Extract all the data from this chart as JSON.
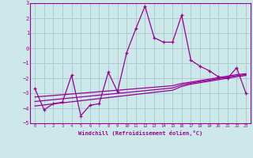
{
  "xlabel": "Windchill (Refroidissement éolien,°C)",
  "ylabel": "",
  "xlim": [
    -0.5,
    23.5
  ],
  "ylim": [
    -5,
    3
  ],
  "xticks": [
    0,
    1,
    2,
    3,
    4,
    5,
    6,
    7,
    8,
    9,
    10,
    11,
    12,
    13,
    14,
    15,
    16,
    17,
    18,
    19,
    20,
    21,
    22,
    23
  ],
  "yticks": [
    -5,
    -4,
    -3,
    -2,
    -1,
    0,
    1,
    2,
    3
  ],
  "bg_color": "#cce8e8",
  "line_color": "#990099",
  "grid_color": "#aacccc",
  "main_line": [
    -2.7,
    -4.1,
    -3.7,
    -3.6,
    -1.8,
    -4.5,
    -3.8,
    -3.7,
    -1.6,
    -2.9,
    -0.3,
    1.3,
    2.8,
    0.7,
    0.4,
    0.4,
    2.2,
    -0.8,
    -1.2,
    -1.5,
    -1.9,
    -2.0,
    -1.3,
    -3.0
  ],
  "trend_line1": [
    -3.85,
    -3.78,
    -3.71,
    -3.64,
    -3.57,
    -3.5,
    -3.43,
    -3.36,
    -3.29,
    -3.22,
    -3.15,
    -3.08,
    -3.01,
    -2.94,
    -2.87,
    -2.8,
    -2.55,
    -2.4,
    -2.3,
    -2.2,
    -2.1,
    -2.0,
    -1.9,
    -1.82
  ],
  "trend_line2": [
    -3.55,
    -3.49,
    -3.43,
    -3.37,
    -3.31,
    -3.25,
    -3.19,
    -3.13,
    -3.07,
    -3.01,
    -2.95,
    -2.89,
    -2.83,
    -2.77,
    -2.71,
    -2.65,
    -2.45,
    -2.33,
    -2.23,
    -2.13,
    -2.03,
    -1.93,
    -1.83,
    -1.76
  ],
  "trend_line3": [
    -3.25,
    -3.2,
    -3.15,
    -3.1,
    -3.05,
    -3.0,
    -2.95,
    -2.9,
    -2.85,
    -2.8,
    -2.75,
    -2.7,
    -2.65,
    -2.6,
    -2.55,
    -2.5,
    -2.35,
    -2.26,
    -2.16,
    -2.06,
    -1.96,
    -1.86,
    -1.76,
    -1.7
  ]
}
